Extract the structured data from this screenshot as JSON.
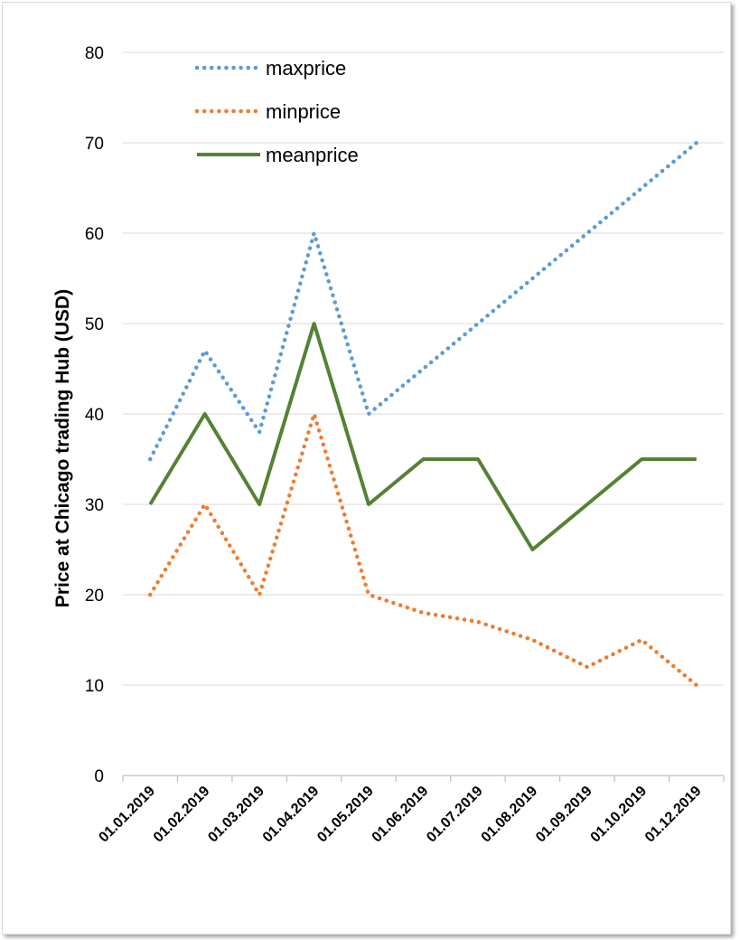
{
  "chart_data": {
    "type": "line",
    "title": "",
    "xlabel": "",
    "ylabel": "Price at Chicago trading Hub (USD)",
    "categories": [
      "01.01.2019",
      "01.02.2019",
      "01.03.2019",
      "01.04.2019",
      "01.05.2019",
      "01.06.2019",
      "01.07.2019",
      "01.08.2019",
      "01.09.2019",
      "01.10.2019",
      "01.12.2019"
    ],
    "y_ticks": [
      "0",
      "10",
      "20",
      "30",
      "40",
      "50",
      "60",
      "70",
      "80"
    ],
    "ylim": [
      0,
      80
    ],
    "grid": "horizontal",
    "legend_position": "top-left",
    "series": [
      {
        "name": "maxprice",
        "style": "dotted",
        "color": "#5b9bd5",
        "values": [
          35,
          47,
          38,
          60,
          40,
          45,
          50,
          55,
          60,
          65,
          70
        ]
      },
      {
        "name": "minprice",
        "style": "dotted",
        "color": "#ed7d31",
        "values": [
          20,
          30,
          20,
          40,
          20,
          18,
          17,
          15,
          12,
          15,
          10
        ]
      },
      {
        "name": "meanprice",
        "style": "solid",
        "color": "#548235",
        "values": [
          30,
          40,
          30,
          50,
          30,
          35,
          35,
          25,
          30,
          35,
          35
        ]
      }
    ]
  }
}
